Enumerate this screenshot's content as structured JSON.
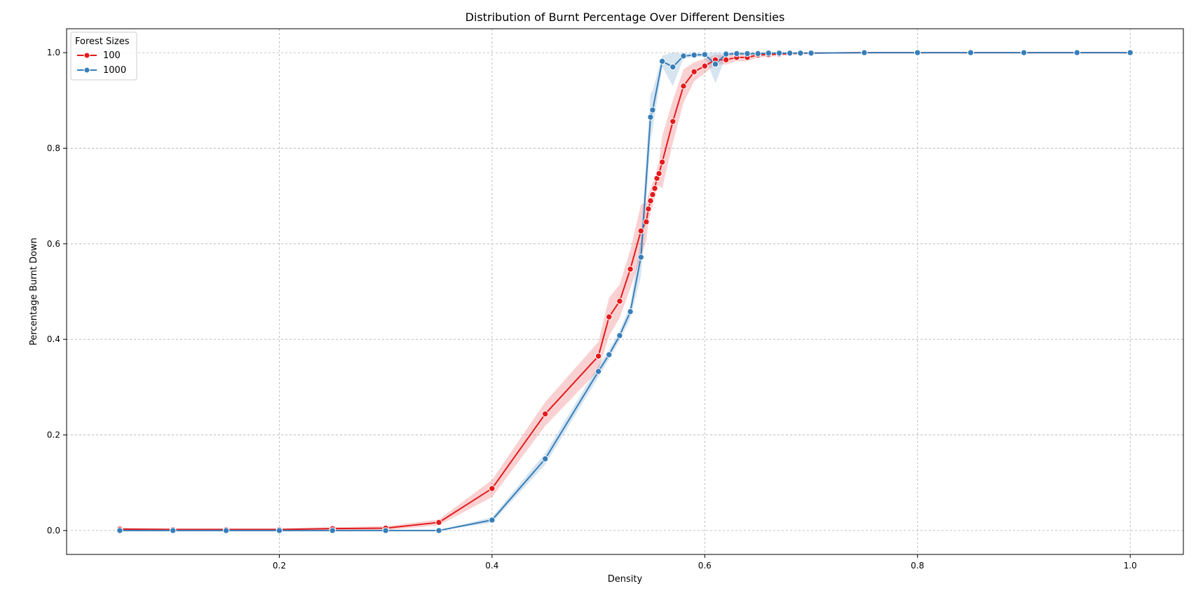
{
  "chart_data": {
    "type": "line",
    "title": "Distribution of Burnt Percentage Over Different Densities",
    "xlabel": "Density",
    "ylabel": "Percentage Burnt Down",
    "xlim": [
      0.0,
      1.05
    ],
    "ylim": [
      -0.05,
      1.05
    ],
    "xticks": [
      0.2,
      0.4,
      0.6,
      0.8,
      1.0
    ],
    "xtick_labels": [
      "0.2",
      "0.4",
      "0.6",
      "0.8",
      "1.0"
    ],
    "yticks": [
      0.0,
      0.2,
      0.4,
      0.6,
      0.8,
      1.0
    ],
    "ytick_labels": [
      "0.0",
      "0.2",
      "0.4",
      "0.6",
      "0.8",
      "1.0"
    ],
    "grid": true,
    "legend": {
      "title": "Forest Sizes",
      "placement": "top-left"
    },
    "series": [
      {
        "name": "100",
        "color": "#e41a1c",
        "marker": "circle",
        "x": [
          0.05,
          0.1,
          0.15,
          0.2,
          0.25,
          0.3,
          0.35,
          0.4,
          0.45,
          0.5,
          0.51,
          0.52,
          0.53,
          0.54,
          0.545,
          0.547,
          0.549,
          0.551,
          0.553,
          0.555,
          0.557,
          0.56,
          0.57,
          0.58,
          0.59,
          0.6,
          0.61,
          0.62,
          0.63,
          0.64,
          0.65,
          0.66,
          0.67,
          0.68,
          0.69,
          0.7,
          0.75,
          0.8,
          0.85,
          0.9,
          0.95,
          1.0
        ],
        "y": [
          0.003,
          0.002,
          0.002,
          0.002,
          0.004,
          0.005,
          0.017,
          0.088,
          0.244,
          0.365,
          0.447,
          0.48,
          0.547,
          0.627,
          0.646,
          0.673,
          0.69,
          0.703,
          0.716,
          0.737,
          0.747,
          0.771,
          0.856,
          0.93,
          0.96,
          0.972,
          0.985,
          0.985,
          0.99,
          0.99,
          0.995,
          0.996,
          0.997,
          0.998,
          0.999,
          0.999,
          1.0,
          1.0,
          1.0,
          1.0,
          1.0,
          1.0
        ],
        "ci_half_width": [
          0.003,
          0.003,
          0.003,
          0.003,
          0.003,
          0.004,
          0.006,
          0.018,
          0.025,
          0.03,
          0.04,
          0.035,
          0.04,
          0.055,
          0.04,
          0.03,
          0.025,
          0.025,
          0.02,
          0.02,
          0.025,
          0.055,
          0.045,
          0.035,
          0.02,
          0.015,
          0.01,
          0.01,
          0.008,
          0.008,
          0.005,
          0.005,
          0.004,
          0.004,
          0.003,
          0.002,
          0.0,
          0.0,
          0.0,
          0.0,
          0.0,
          0.0
        ]
      },
      {
        "name": "1000",
        "color": "#377eb8",
        "marker": "circle",
        "x": [
          0.05,
          0.1,
          0.15,
          0.2,
          0.25,
          0.3,
          0.35,
          0.4,
          0.45,
          0.5,
          0.51,
          0.52,
          0.53,
          0.54,
          0.549,
          0.551,
          0.56,
          0.57,
          0.58,
          0.59,
          0.6,
          0.61,
          0.62,
          0.63,
          0.64,
          0.65,
          0.66,
          0.67,
          0.68,
          0.69,
          0.7,
          0.75,
          0.8,
          0.85,
          0.9,
          0.95,
          1.0
        ],
        "y": [
          0.0,
          0.0,
          0.0,
          0.0,
          0.0,
          0.0,
          0.0,
          0.022,
          0.15,
          0.333,
          0.368,
          0.408,
          0.458,
          0.572,
          0.865,
          0.88,
          0.982,
          0.97,
          0.993,
          0.995,
          0.996,
          0.976,
          0.997,
          0.998,
          0.998,
          0.998,
          0.999,
          0.999,
          0.999,
          0.999,
          0.999,
          1.0,
          1.0,
          1.0,
          1.0,
          1.0,
          1.0
        ],
        "ci_half_width": [
          0.001,
          0.001,
          0.001,
          0.001,
          0.001,
          0.001,
          0.001,
          0.006,
          0.012,
          0.012,
          0.01,
          0.01,
          0.015,
          0.04,
          0.05,
          0.04,
          0.012,
          0.04,
          0.005,
          0.004,
          0.004,
          0.04,
          0.004,
          0.003,
          0.003,
          0.002,
          0.002,
          0.002,
          0.002,
          0.001,
          0.001,
          0.0,
          0.0,
          0.0,
          0.0,
          0.0,
          0.0
        ]
      }
    ]
  }
}
